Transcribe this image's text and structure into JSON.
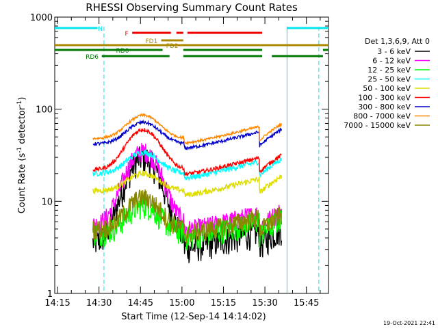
{
  "chart_data": {
    "type": "line",
    "title": "RHESSI Observing Summary Count Rates",
    "xlabel": "Start Time (12-Sep-14 14:14:02)",
    "ylabel_main": "Count Rate (s",
    "ylabel_sup1": "-1",
    "ylabel_mid": " detector",
    "ylabel_sup2": "-1",
    "ylabel_end": ")",
    "yscale": "log",
    "ylim": [
      1,
      1000
    ],
    "xlim_minutes": [
      14.0,
      113.0
    ],
    "x_ticks": [
      {
        "label": "14:15",
        "minutes": 15
      },
      {
        "label": "14:30",
        "minutes": 30
      },
      {
        "label": "14:45",
        "minutes": 45
      },
      {
        "label": "15:00",
        "minutes": 60
      },
      {
        "label": "15:15",
        "minutes": 75
      },
      {
        "label": "15:30",
        "minutes": 90
      },
      {
        "label": "15:45",
        "minutes": 105
      }
    ],
    "y_ticks": [
      {
        "label": "1",
        "value": 1
      },
      {
        "label": "10",
        "value": 10
      },
      {
        "label": "100",
        "value": 100
      },
      {
        "label": "1000",
        "value": 1000
      }
    ],
    "legend_header": "Det 1,3,6,9, Att 0",
    "series": [
      {
        "name": "3 - 6 keV",
        "color": "#000000",
        "base": 3.5,
        "peak": 30,
        "noise": 0.35
      },
      {
        "name": "6 - 12 keV",
        "color": "#ff00ff",
        "base": 5.5,
        "peak": 35,
        "noise": 0.25
      },
      {
        "name": "12 - 25 keV",
        "color": "#00ff00",
        "base": 4.5,
        "peak": 9,
        "noise": 0.3
      },
      {
        "name": "25 - 50 keV",
        "color": "#00ffff",
        "base": 20,
        "peak": 34,
        "noise": 0.07
      },
      {
        "name": "50 - 100 keV",
        "color": "#dddd00",
        "base": 13,
        "peak": 20,
        "noise": 0.07
      },
      {
        "name": "100 - 300 keV",
        "color": "#ff0000",
        "base": 22,
        "peak": 60,
        "noise": 0.05
      },
      {
        "name": "300 - 800 keV",
        "color": "#0000cc",
        "base": 42,
        "peak": 72,
        "noise": 0.04
      },
      {
        "name": "800 - 7000 keV",
        "color": "#ff8800",
        "base": 48,
        "peak": 86,
        "noise": 0.03
      },
      {
        "name": "7000 - 15000 keV",
        "color": "#888800",
        "base": 5,
        "peak": 11,
        "noise": 0.25
      }
    ],
    "state_bars": [
      {
        "label": "N",
        "color": "#00e5ee",
        "segments": [
          [
            14.0,
            29.5
          ],
          [
            98.0,
            113.0
          ]
        ],
        "level": 0
      },
      {
        "label": "F",
        "color": "#ee0000",
        "segments": [
          [
            42.0,
            56.0
          ],
          [
            58.0,
            60.5
          ],
          [
            62.0,
            89.0
          ]
        ],
        "level": 1
      },
      {
        "label": "FD1",
        "color": "#aa8800",
        "segments": [
          [
            52.5,
            60.5
          ]
        ],
        "level": 2
      },
      {
        "label": "FD2",
        "color": "#aa8800",
        "segments": [
          [
            14.0,
            113.0
          ]
        ],
        "level": 3
      },
      {
        "label": "RD0",
        "color": "#007700",
        "segments": [
          [
            14.0,
            53.0
          ],
          [
            60.5,
            89.0
          ],
          [
            111.0,
            113.0
          ]
        ],
        "level": 4
      },
      {
        "label": "RD6",
        "color": "#007700",
        "segments": [
          [
            31.0,
            55.5
          ],
          [
            60.5,
            89.0
          ],
          [
            92.5,
            111.0
          ]
        ],
        "level": 5
      }
    ],
    "night_lines_minutes": [
      31.8,
      98.0,
      109.5
    ],
    "timestamp": "19-Oct-2021 22:41"
  }
}
